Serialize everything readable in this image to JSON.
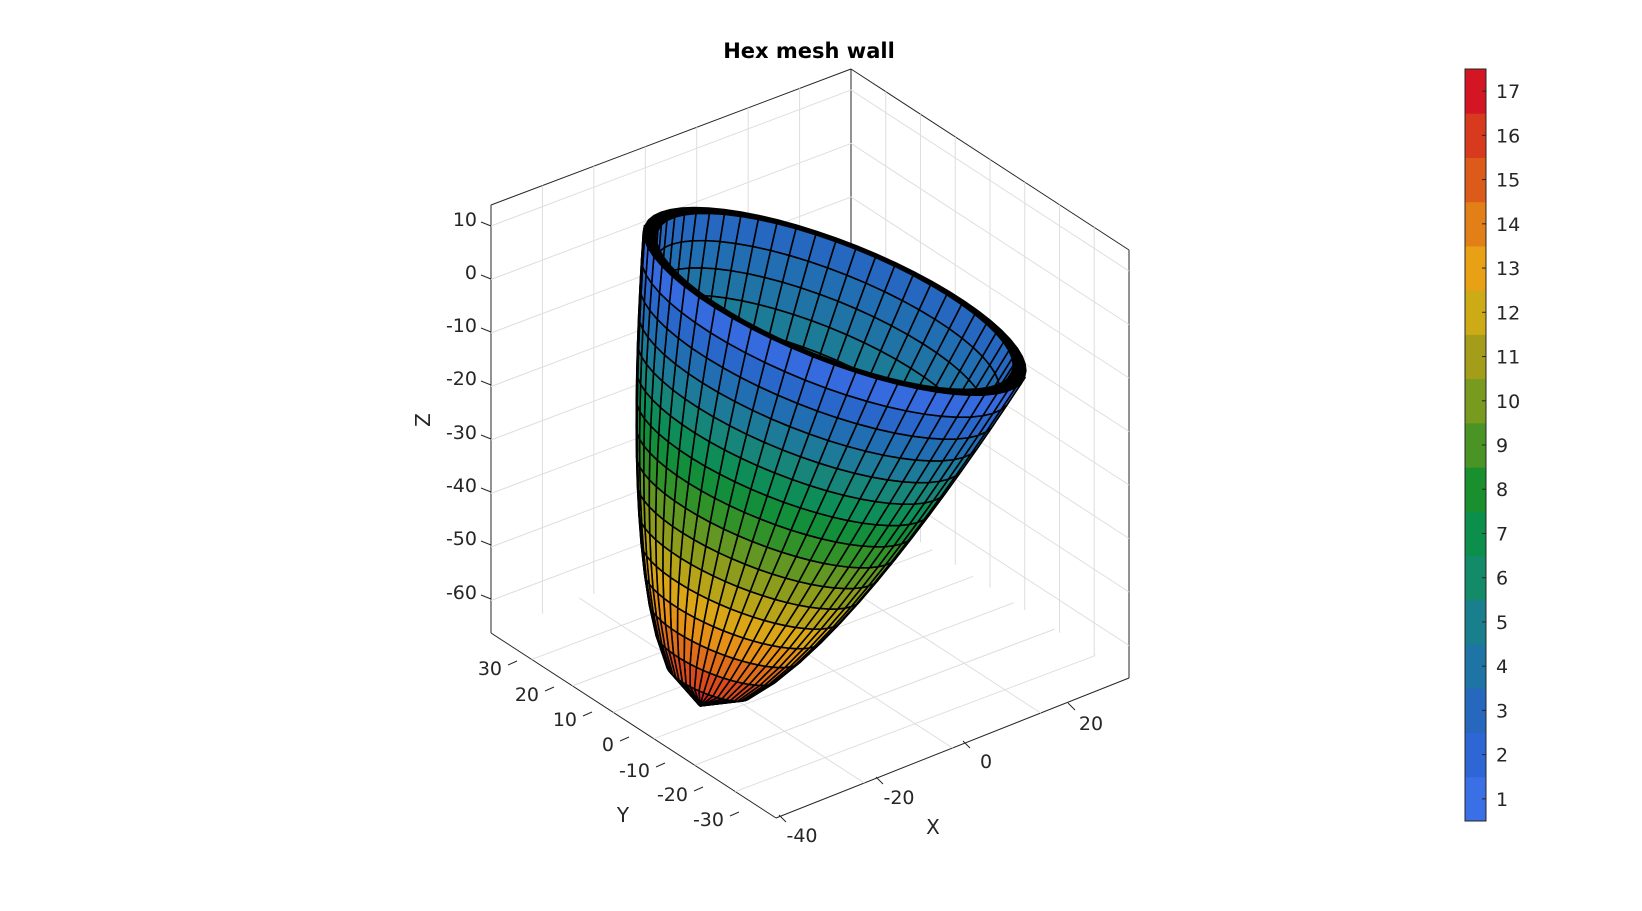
{
  "chart_data": {
    "type": "surface",
    "title": "Hex mesh wall",
    "xlabel": "X",
    "ylabel": "Y",
    "zlabel": "Z",
    "x_ticks": [
      "-40",
      "-20",
      "0",
      "20"
    ],
    "y_ticks": [
      "30",
      "20",
      "10",
      "0",
      "-10",
      "-20",
      "-30"
    ],
    "z_ticks": [
      "10",
      "0",
      "-10",
      "-20",
      "-30",
      "-40",
      "-50",
      "-60"
    ],
    "xlim": [
      -45,
      30
    ],
    "ylim": [
      -35,
      35
    ],
    "zlim": [
      -68,
      14
    ],
    "grid": true,
    "colorbar": {
      "ticks": [
        "17",
        "16",
        "15",
        "14",
        "13",
        "12",
        "11",
        "10",
        "9",
        "8",
        "7",
        "6",
        "5",
        "4",
        "3",
        "2",
        "1"
      ],
      "range": [
        0.5,
        17.5
      ],
      "colors": [
        "#3a6fe6",
        "#2f66d6",
        "#2568be",
        "#1f74a6",
        "#1a7f8c",
        "#138a68",
        "#0b8f4a",
        "#1a8f2e",
        "#4a9425",
        "#779a1f",
        "#a39d19",
        "#cdab16",
        "#e8a015",
        "#e27f17",
        "#dc5a1a",
        "#d83a1e",
        "#d41624"
      ]
    }
  }
}
